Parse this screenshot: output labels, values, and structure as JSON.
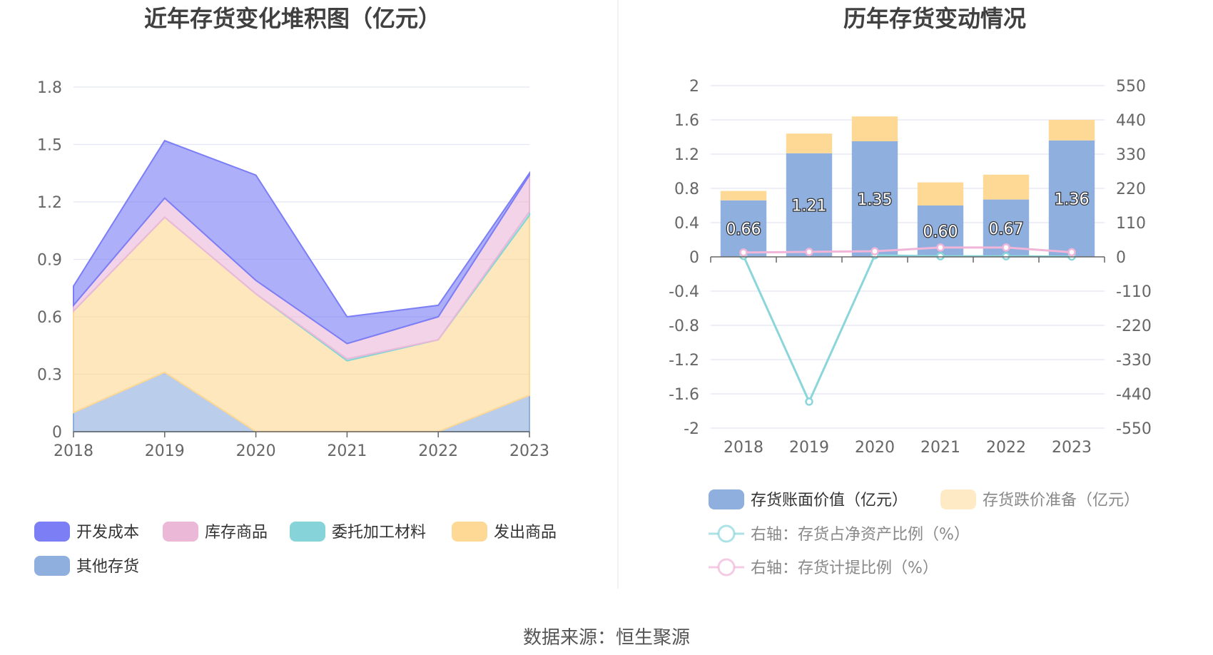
{
  "chart_data": [
    {
      "type": "area",
      "stacked": true,
      "title": "近年存货变化堆积图（亿元）",
      "categories": [
        "2018",
        "2019",
        "2020",
        "2021",
        "2022",
        "2023"
      ],
      "ylim": [
        0,
        1.8
      ],
      "yticks": [
        "0",
        "0.3",
        "0.6",
        "0.9",
        "1.2",
        "1.5",
        "1.8"
      ],
      "grid": true,
      "legend_position": "bottom",
      "series": [
        {
          "name": "开发成本",
          "color": "#7b7ef5",
          "values": [
            0.1,
            0.3,
            0.55,
            0.14,
            0.06,
            0.01
          ]
        },
        {
          "name": "库存商品",
          "color": "#ecb8d8",
          "values": [
            0.03,
            0.1,
            0.07,
            0.08,
            0.12,
            0.19
          ]
        },
        {
          "name": "委托加工材料",
          "color": "#86d4da",
          "values": [
            0.0,
            0.0,
            0.0,
            0.01,
            0.0,
            0.02
          ]
        },
        {
          "name": "发出商品",
          "color": "#fdd995",
          "values": [
            0.53,
            0.81,
            0.72,
            0.37,
            0.48,
            0.94
          ]
        },
        {
          "name": "其他存货",
          "color": "#8fb0df",
          "values": [
            0.1,
            0.31,
            0.0,
            0.0,
            0.0,
            0.19
          ]
        }
      ]
    },
    {
      "type": "bar",
      "stacked": true,
      "title": "历年存货变动情况",
      "categories": [
        "2018",
        "2019",
        "2020",
        "2021",
        "2022",
        "2023"
      ],
      "ylim": [
        -2,
        2
      ],
      "yticks": [
        "-2",
        "-1.6",
        "-1.2",
        "-0.8",
        "-0.4",
        "0",
        "0.4",
        "0.8",
        "1.2",
        "1.6",
        "2"
      ],
      "y2lim": [
        -550,
        550
      ],
      "y2ticks": [
        "-550",
        "-440",
        "-330",
        "-220",
        "-110",
        "0",
        "110",
        "220",
        "330",
        "440",
        "550"
      ],
      "grid": true,
      "legend_position": "bottom",
      "series": [
        {
          "name": "存货账面价值（亿元）",
          "type": "bar",
          "color": "#8fb0df",
          "values": [
            0.66,
            1.21,
            1.35,
            0.6,
            0.67,
            1.36
          ],
          "labels": [
            "0.66",
            "1.21",
            "1.35",
            "0.60",
            "0.67",
            "1.36"
          ]
        },
        {
          "name": "存货跌价准备（亿元）",
          "type": "bar",
          "color": "#fdd995",
          "values": [
            0.11,
            0.23,
            0.29,
            0.27,
            0.29,
            0.24
          ]
        },
        {
          "name": "右轴：存货占净资产比例（%）",
          "type": "line",
          "axis": "right",
          "color": "#8ad6db",
          "values": [
            3,
            -465,
            5,
            2,
            2,
            1
          ]
        },
        {
          "name": "右轴：存货计提比例（%）",
          "type": "line",
          "axis": "right",
          "color": "#f0b5d8",
          "values": [
            14,
            16,
            18,
            30,
            30,
            15
          ]
        }
      ]
    }
  ],
  "footer": {
    "source": "数据来源：恒生聚源"
  }
}
